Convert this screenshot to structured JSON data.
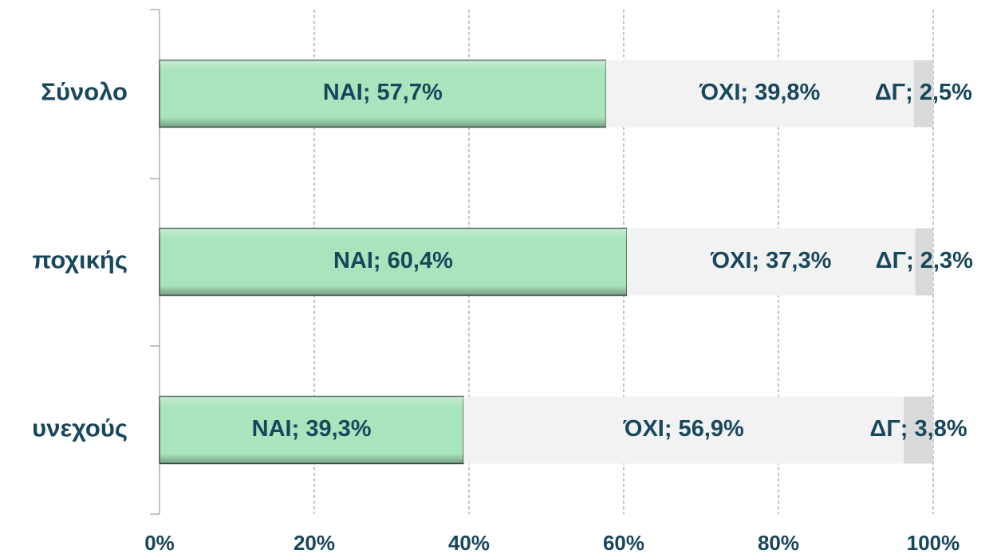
{
  "chart_data": {
    "type": "stacked_barh",
    "categories": [
      "Σύνολο",
      "ποχικής",
      "υνεχούς"
    ],
    "series": [
      {
        "name": "ΝΑΙ",
        "color": "#a8e4bc",
        "values": [
          57.7,
          60.4,
          39.3
        ],
        "value_labels": [
          "ΝΑΙ; 57,7%",
          "ΝΑΙ; 60,4%",
          "ΝΑΙ; 39,3%"
        ]
      },
      {
        "name": "ΌΧΙ",
        "color": "#f2f2f2",
        "values": [
          39.8,
          37.3,
          56.9
        ],
        "value_labels": [
          "ΌΧΙ; 39,8%",
          "ΌΧΙ; 37,3%",
          "ΌΧΙ; 56,9%"
        ]
      },
      {
        "name": "ΔΓ",
        "color": "#d9d9d9",
        "values": [
          2.5,
          2.3,
          3.8
        ],
        "value_labels": [
          "ΔΓ; 2,5%",
          "ΔΓ; 2,3%",
          "ΔΓ; 3,8%"
        ]
      }
    ],
    "xlim": [
      0,
      100
    ],
    "xticks": [
      {
        "value": 0,
        "label": "0%"
      },
      {
        "value": 20,
        "label": "20%"
      },
      {
        "value": 40,
        "label": "40%"
      },
      {
        "value": 60,
        "label": "60%"
      },
      {
        "value": 80,
        "label": "80%"
      },
      {
        "value": 100,
        "label": "100%"
      }
    ],
    "grid": true
  }
}
